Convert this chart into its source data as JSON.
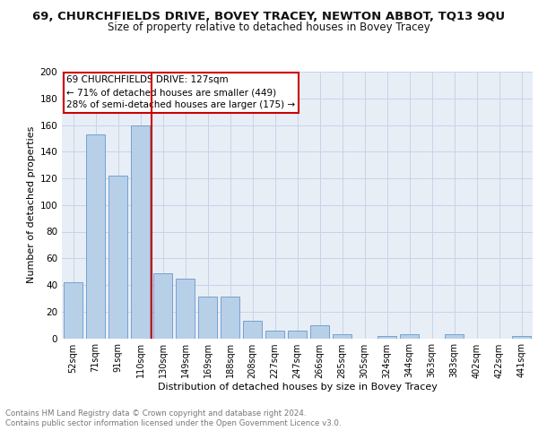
{
  "title": "69, CHURCHFIELDS DRIVE, BOVEY TRACEY, NEWTON ABBOT, TQ13 9QU",
  "subtitle": "Size of property relative to detached houses in Bovey Tracey",
  "xlabel": "Distribution of detached houses by size in Bovey Tracey",
  "ylabel": "Number of detached properties",
  "categories": [
    "52sqm",
    "71sqm",
    "91sqm",
    "110sqm",
    "130sqm",
    "149sqm",
    "169sqm",
    "188sqm",
    "208sqm",
    "227sqm",
    "247sqm",
    "266sqm",
    "285sqm",
    "305sqm",
    "324sqm",
    "344sqm",
    "363sqm",
    "383sqm",
    "402sqm",
    "422sqm",
    "441sqm"
  ],
  "values": [
    42,
    153,
    122,
    160,
    49,
    45,
    31,
    31,
    13,
    6,
    6,
    10,
    3,
    0,
    2,
    3,
    0,
    3,
    0,
    0,
    2
  ],
  "bar_color": "#b8cfe8",
  "bar_edge_color": "#6699cc",
  "vline_color": "#cc0000",
  "annotation_text": "69 CHURCHFIELDS DRIVE: 127sqm\n← 71% of detached houses are smaller (449)\n28% of semi-detached houses are larger (175) →",
  "annotation_box_color": "#ffffff",
  "annotation_box_edge": "#cc0000",
  "grid_color": "#c8d4e8",
  "background_color": "#e8eef6",
  "ylim": [
    0,
    200
  ],
  "yticks": [
    0,
    20,
    40,
    60,
    80,
    100,
    120,
    140,
    160,
    180,
    200
  ],
  "footer_text": "Contains HM Land Registry data © Crown copyright and database right 2024.\nContains public sector information licensed under the Open Government Licence v3.0.",
  "title_fontsize": 9.5,
  "subtitle_fontsize": 8.5,
  "xlabel_fontsize": 8,
  "ylabel_fontsize": 8
}
